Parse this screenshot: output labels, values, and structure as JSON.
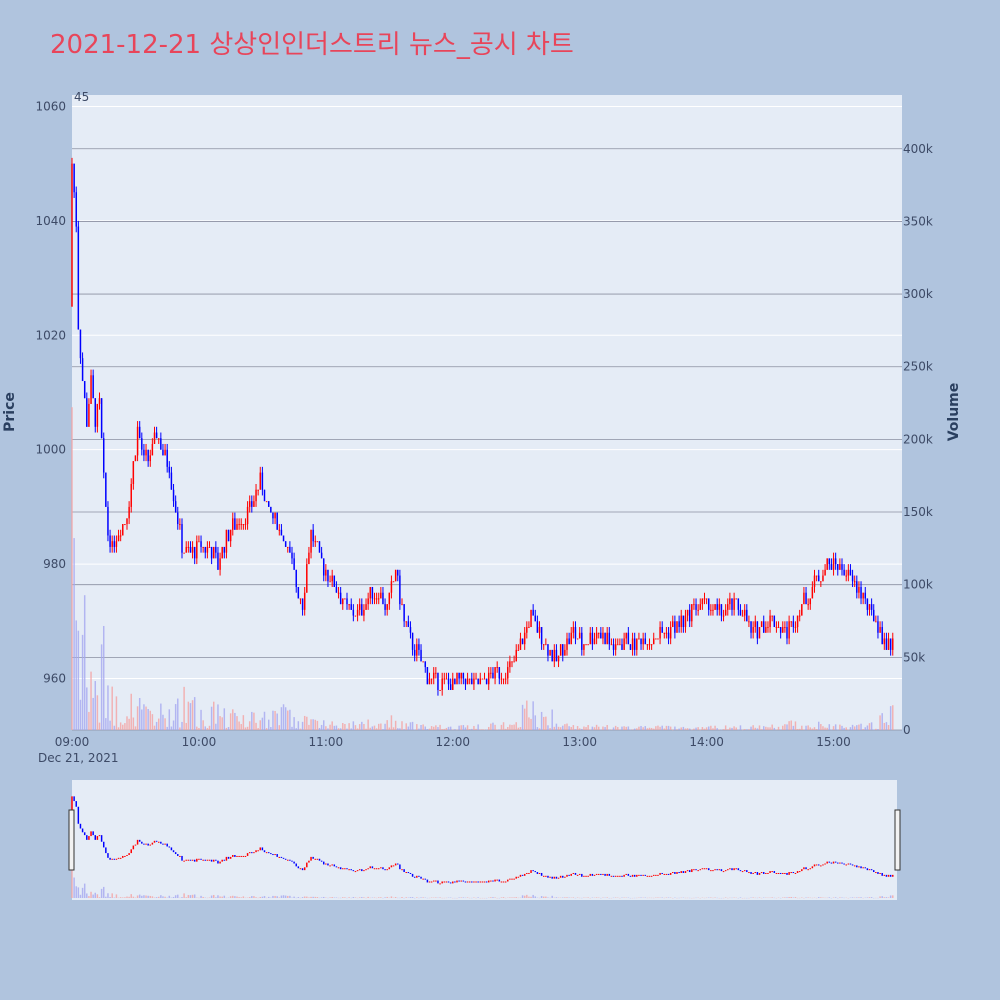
{
  "chart_data": {
    "type": "candlestick",
    "title": "2021-12-21 상상인인더스트리 뉴스_공시 차트",
    "ylabel": "Price",
    "y2label": "Volume",
    "date_label": "Dec 21, 2021",
    "ylim": [
      951,
      1062
    ],
    "y2lim": [
      0,
      437000
    ],
    "xlim": [
      "09:00",
      "15:30"
    ],
    "x_ticks": [
      "09:00",
      "10:00",
      "11:00",
      "12:00",
      "13:00",
      "14:00",
      "15:00"
    ],
    "y_ticks": [
      960,
      980,
      1000,
      1020,
      1040,
      1060
    ],
    "y2_ticks": [
      {
        "value": 0,
        "label": "0"
      },
      {
        "value": 50000,
        "label": "50k"
      },
      {
        "value": 100000,
        "label": "100k"
      },
      {
        "value": 150000,
        "label": "150k"
      },
      {
        "value": 200000,
        "label": "200k"
      },
      {
        "value": 250000,
        "label": "250k"
      },
      {
        "value": 300000,
        "label": "300k"
      },
      {
        "value": 350000,
        "label": "350k"
      },
      {
        "value": 400000,
        "label": "400k"
      }
    ],
    "annotation": "45",
    "up_color": "#ff0000",
    "down_color": "#0000ff",
    "price_path": [
      [
        "09:00",
        1025
      ],
      [
        "09:01",
        1050
      ],
      [
        "09:02",
        1045
      ],
      [
        "09:03",
        1040
      ],
      [
        "09:04",
        1022
      ],
      [
        "09:06",
        1012
      ],
      [
        "09:08",
        1005
      ],
      [
        "09:10",
        1012
      ],
      [
        "09:12",
        1005
      ],
      [
        "09:14",
        1008
      ],
      [
        "09:16",
        995
      ],
      [
        "09:18",
        985
      ],
      [
        "09:20",
        983
      ],
      [
        "09:23",
        986
      ],
      [
        "09:26",
        987
      ],
      [
        "09:29",
        994
      ],
      [
        "09:32",
        1004
      ],
      [
        "09:35",
        998
      ],
      [
        "09:38",
        999
      ],
      [
        "09:41",
        1003
      ],
      [
        "09:44",
        999
      ],
      [
        "09:47",
        997
      ],
      [
        "09:50",
        990
      ],
      [
        "09:53",
        983
      ],
      [
        "09:57",
        982
      ],
      [
        "10:02",
        983
      ],
      [
        "10:06",
        983
      ],
      [
        "10:10",
        980
      ],
      [
        "10:14",
        985
      ],
      [
        "10:18",
        987
      ],
      [
        "10:22",
        988
      ],
      [
        "10:26",
        990
      ],
      [
        "10:30",
        995
      ],
      [
        "10:34",
        989
      ],
      [
        "10:38",
        987
      ],
      [
        "10:42",
        984
      ],
      [
        "10:46",
        978
      ],
      [
        "10:50",
        973
      ],
      [
        "10:54",
        986
      ],
      [
        "10:58",
        981
      ],
      [
        "11:02",
        978
      ],
      [
        "11:06",
        976
      ],
      [
        "11:10",
        973
      ],
      [
        "11:14",
        971
      ],
      [
        "11:18",
        972
      ],
      [
        "11:22",
        975
      ],
      [
        "11:26",
        975
      ],
      [
        "11:30",
        972
      ],
      [
        "11:34",
        979
      ],
      [
        "11:38",
        970
      ],
      [
        "11:42",
        966
      ],
      [
        "11:46",
        963
      ],
      [
        "11:50",
        960
      ],
      [
        "11:54",
        959
      ],
      [
        "11:58",
        959
      ],
      [
        "12:02",
        959
      ],
      [
        "12:06",
        960
      ],
      [
        "12:10",
        959
      ],
      [
        "12:14",
        959
      ],
      [
        "12:18",
        960
      ],
      [
        "12:22",
        961
      ],
      [
        "12:26",
        961
      ],
      [
        "12:30",
        963
      ],
      [
        "12:34",
        967
      ],
      [
        "12:38",
        971
      ],
      [
        "12:42",
        968
      ],
      [
        "12:46",
        965
      ],
      [
        "12:50",
        963
      ],
      [
        "12:54",
        966
      ],
      [
        "12:58",
        968
      ],
      [
        "13:02",
        966
      ],
      [
        "13:06",
        967
      ],
      [
        "13:10",
        968
      ],
      [
        "13:14",
        967
      ],
      [
        "13:18",
        965
      ],
      [
        "13:22",
        967
      ],
      [
        "13:26",
        966
      ],
      [
        "13:30",
        967
      ],
      [
        "13:34",
        967
      ],
      [
        "13:38",
        968
      ],
      [
        "13:42",
        968
      ],
      [
        "13:46",
        969
      ],
      [
        "13:50",
        970
      ],
      [
        "13:54",
        972
      ],
      [
        "13:58",
        973
      ],
      [
        "14:02",
        973
      ],
      [
        "14:06",
        971
      ],
      [
        "14:10",
        972
      ],
      [
        "14:14",
        973
      ],
      [
        "14:18",
        972
      ],
      [
        "14:22",
        968
      ],
      [
        "14:26",
        969
      ],
      [
        "14:30",
        970
      ],
      [
        "14:34",
        970
      ],
      [
        "14:38",
        968
      ],
      [
        "14:42",
        970
      ],
      [
        "14:46",
        973
      ],
      [
        "14:50",
        975
      ],
      [
        "14:54",
        978
      ],
      [
        "14:58",
        980
      ],
      [
        "15:02",
        980
      ],
      [
        "15:06",
        979
      ],
      [
        "15:10",
        977
      ],
      [
        "15:14",
        975
      ],
      [
        "15:18",
        972
      ],
      [
        "15:22",
        969
      ],
      [
        "15:26",
        966
      ],
      [
        "15:28",
        966
      ]
    ],
    "volume_profile": [
      [
        "09:00",
        390000
      ],
      [
        "09:01",
        150000
      ],
      [
        "09:02",
        180000
      ],
      [
        "09:03",
        80000
      ],
      [
        "09:05",
        90000
      ],
      [
        "09:07",
        60000
      ],
      [
        "09:09",
        45000
      ],
      [
        "09:12",
        30000
      ],
      [
        "09:15",
        70000
      ],
      [
        "09:20",
        25000
      ],
      [
        "09:30",
        20000
      ],
      [
        "09:40",
        15000
      ],
      [
        "09:50",
        18000
      ],
      [
        "09:55",
        30000
      ],
      [
        "10:00",
        12000
      ],
      [
        "10:10",
        20000
      ],
      [
        "10:20",
        10000
      ],
      [
        "10:30",
        12000
      ],
      [
        "10:40",
        15000
      ],
      [
        "10:50",
        8000
      ],
      [
        "11:00",
        6000
      ],
      [
        "11:10",
        5000
      ],
      [
        "11:20",
        6000
      ],
      [
        "11:30",
        9000
      ],
      [
        "11:40",
        5000
      ],
      [
        "11:50",
        4000
      ],
      [
        "12:00",
        2500
      ],
      [
        "12:30",
        5000
      ],
      [
        "12:35",
        20000
      ],
      [
        "13:00",
        3000
      ],
      [
        "13:30",
        2500
      ],
      [
        "14:00",
        2500
      ],
      [
        "14:30",
        3000
      ],
      [
        "14:40",
        6000
      ],
      [
        "14:50",
        5000
      ],
      [
        "15:00",
        4000
      ],
      [
        "15:10",
        3000
      ],
      [
        "15:20",
        5000
      ],
      [
        "15:28",
        20000
      ]
    ]
  }
}
